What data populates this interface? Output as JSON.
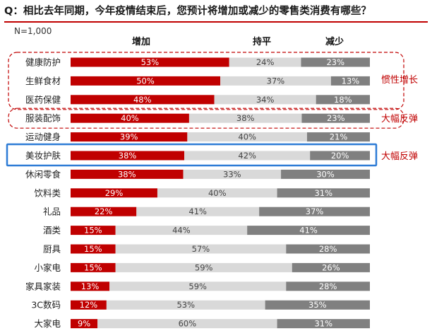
{
  "title": "Q：相比去年同期，今年疫情结束后，您预计将增加或减少的零售类消费有哪些？",
  "sample": "N=1,000",
  "headers": [
    "增加",
    "持平",
    "减少"
  ],
  "chart_data": {
    "type": "bar",
    "stacked": true,
    "orientation": "horizontal",
    "percent_stacked": true,
    "categories": [
      "健康防护",
      "生鲜食材",
      "医药保健",
      "服装配饰",
      "运动健身",
      "美妆护肤",
      "休闲零食",
      "饮料类",
      "礼品",
      "酒类",
      "厨具",
      "小家电",
      "家具家装",
      "3C数码",
      "大家电"
    ],
    "series": [
      {
        "name": "增加",
        "color": "#c00000",
        "values": [
          53,
          50,
          48,
          40,
          39,
          38,
          38,
          29,
          22,
          15,
          15,
          15,
          13,
          12,
          9
        ]
      },
      {
        "name": "持平",
        "color": "#d9d9d9",
        "values": [
          24,
          37,
          34,
          38,
          40,
          42,
          33,
          40,
          41,
          44,
          57,
          59,
          59,
          53,
          60
        ]
      },
      {
        "name": "减少",
        "color": "#808080",
        "values": [
          23,
          13,
          18,
          23,
          21,
          20,
          30,
          31,
          37,
          41,
          28,
          26,
          28,
          35,
          31
        ]
      }
    ],
    "annotations": [
      {
        "text": "惯性增长",
        "categories": [
          "健康防护",
          "生鲜食材",
          "医药保健"
        ],
        "style": "red-dashed"
      },
      {
        "text": "大幅反弹",
        "categories": [
          "服装配饰"
        ],
        "style": "red-dashed"
      },
      {
        "text": "大幅反弹",
        "categories": [
          "美妆护肤"
        ],
        "style": "blue-solid"
      }
    ]
  }
}
